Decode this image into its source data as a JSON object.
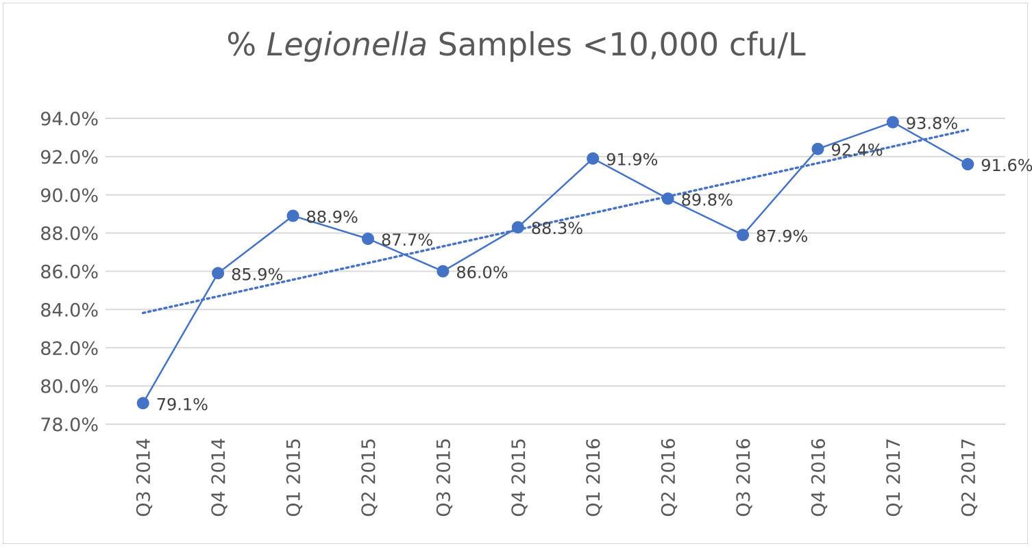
{
  "chart_data": {
    "type": "line",
    "title": {
      "prefix": "% ",
      "italic": "Legionella",
      "suffix": " Samples <10,000 cfu/L"
    },
    "xlabel": "",
    "ylabel": "",
    "categories": [
      "Q3 2014",
      "Q4 2014",
      "Q1 2015",
      "Q2 2015",
      "Q3 2015",
      "Q4 2015",
      "Q1 2016",
      "Q2 2016",
      "Q3 2016",
      "Q4 2016",
      "Q1 2017",
      "Q2 2017"
    ],
    "series": [
      {
        "values": [
          79.1,
          85.9,
          88.9,
          87.7,
          86.0,
          88.3,
          91.9,
          89.8,
          87.9,
          92.4,
          93.8,
          91.6
        ],
        "labels": [
          "79.1%",
          "85.9%",
          "88.9%",
          "87.7%",
          "86.0%",
          "88.3%",
          "91.9%",
          "89.8%",
          "87.9%",
          "92.4%",
          "93.8%",
          "91.6%"
        ],
        "color": "#4472c4",
        "marker": "circle"
      }
    ],
    "trendline": {
      "type": "linear",
      "style": "dotted",
      "color": "#4472c4"
    },
    "ylim": [
      78.0,
      94.0
    ],
    "yticks": [
      78.0,
      80.0,
      82.0,
      84.0,
      86.0,
      88.0,
      90.0,
      92.0,
      94.0
    ],
    "ytick_labels": [
      "78.0%",
      "80.0%",
      "82.0%",
      "84.0%",
      "86.0%",
      "88.0%",
      "90.0%",
      "92.0%",
      "94.0%"
    ],
    "grid": true,
    "gridline_color": "#d9d9d9",
    "legend": "none",
    "x_tick_orientation": "vertical"
  }
}
